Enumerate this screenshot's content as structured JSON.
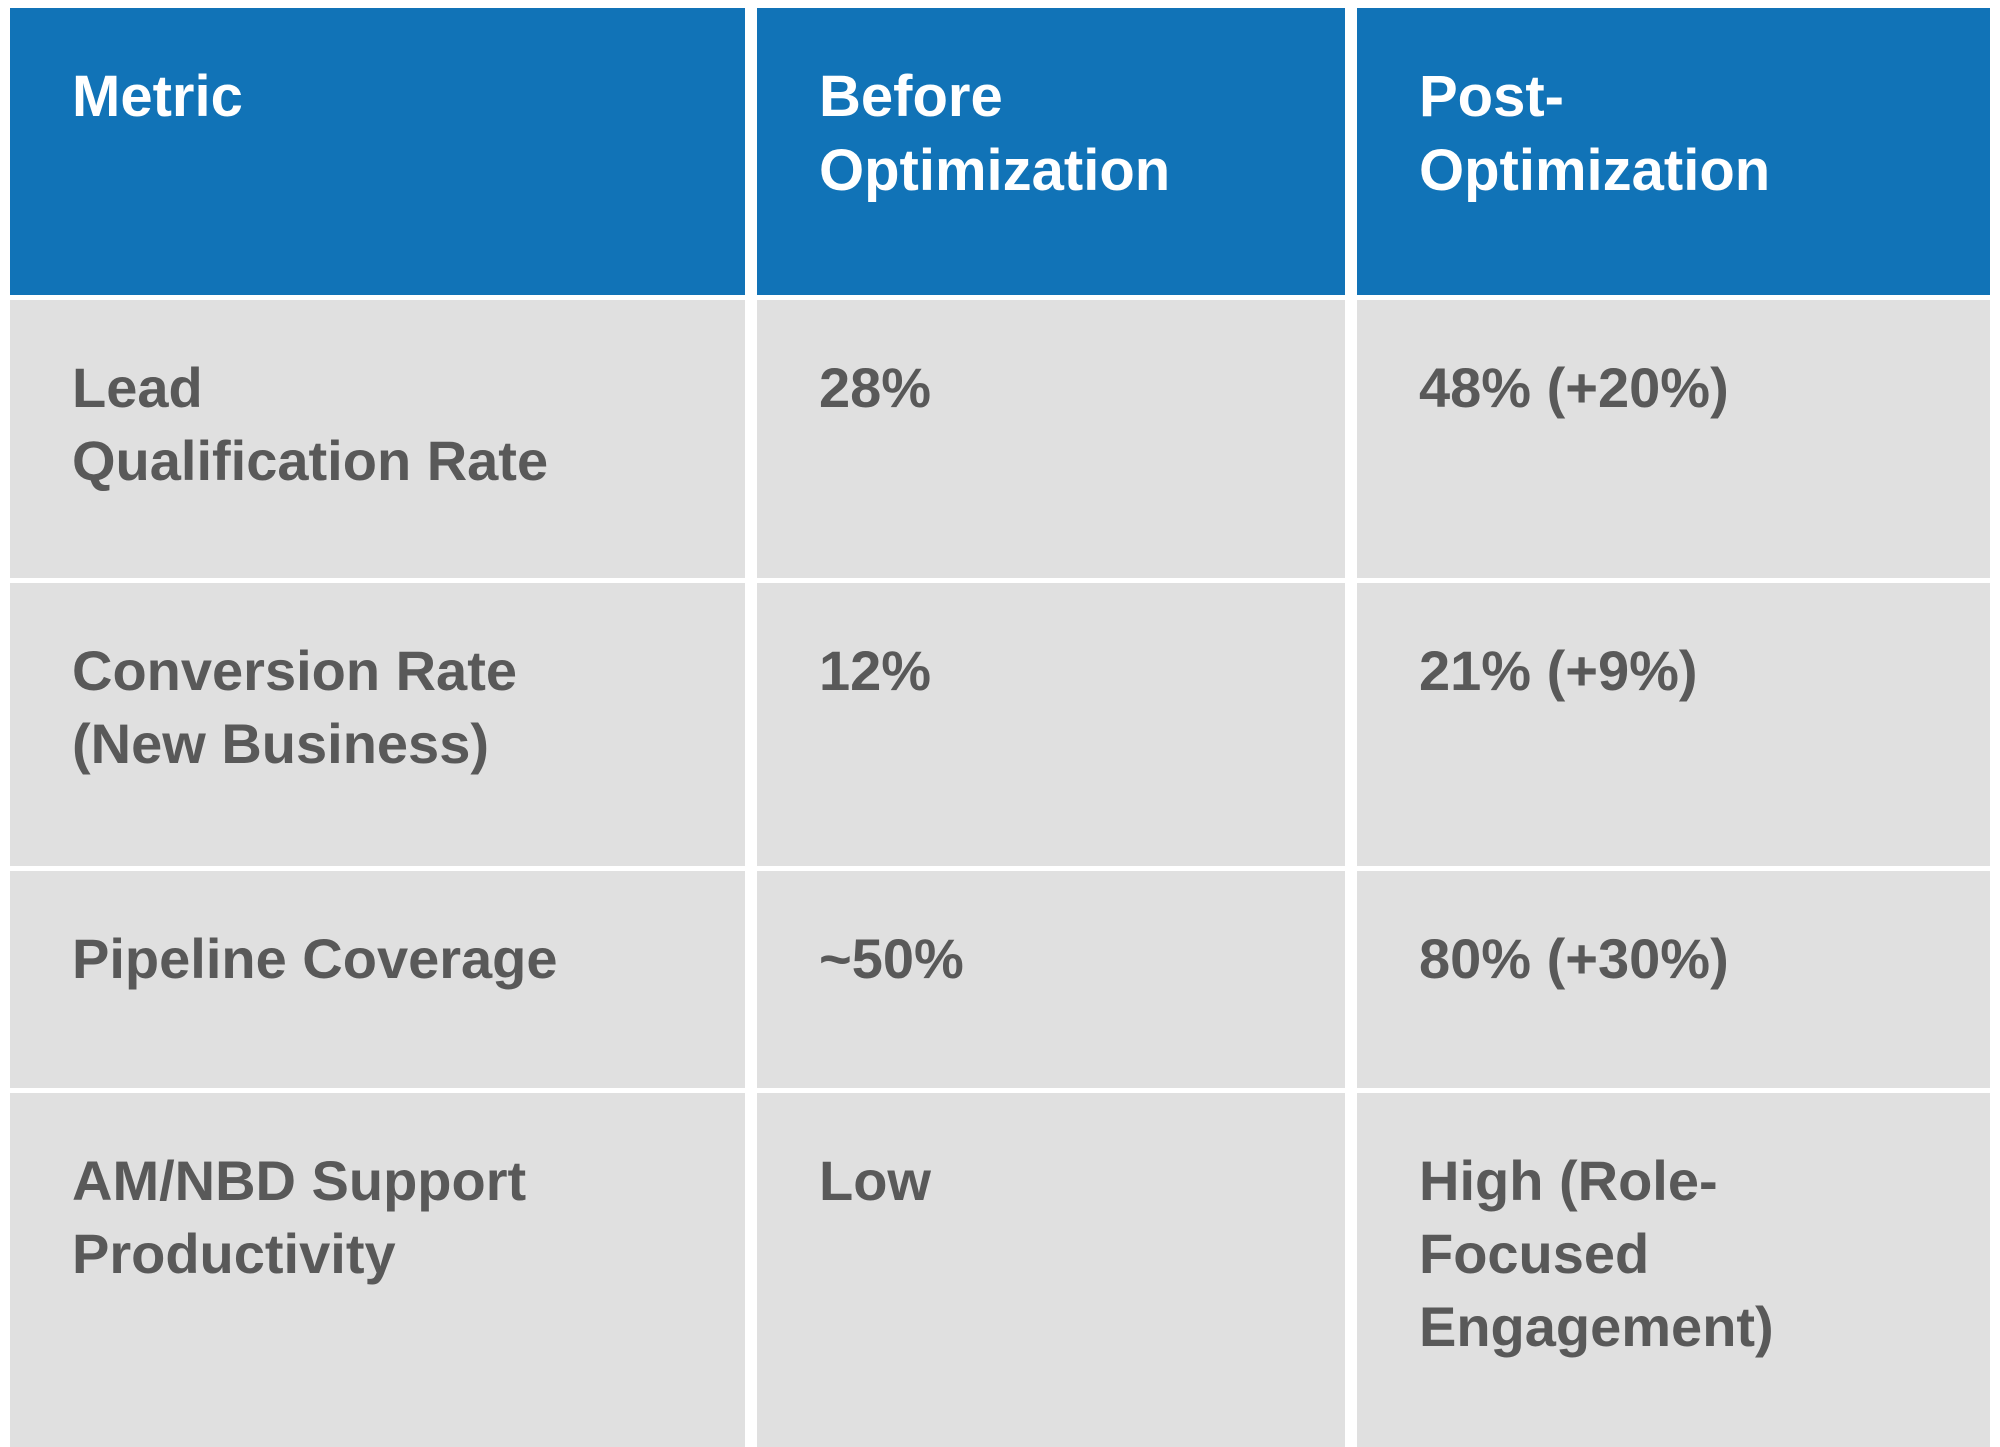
{
  "colors": {
    "header_bg": "#1173b7",
    "header_text": "#ffffff",
    "row_bg": "#e0e0e0",
    "cell_text": "#595959",
    "gap_color": "#ffffff"
  },
  "chart_data": {
    "type": "table",
    "title": "",
    "columns": [
      "Metric",
      "Before\nOptimization",
      "Post-\nOptimization"
    ],
    "rows": [
      {
        "metric": "Lead\nQualification Rate",
        "before": "28%",
        "post": "48% (+20%)"
      },
      {
        "metric": "Conversion Rate\n(New Business)",
        "before": "12%",
        "post": "21% (+9%)"
      },
      {
        "metric": "Pipeline Coverage",
        "before": "~50%",
        "post": "80% (+30%)"
      },
      {
        "metric": "AM/NBD Support\nProductivity",
        "before": "Low",
        "post": "High (Role-\nFocused\nEngagement)"
      }
    ],
    "layout": {
      "legend": "none",
      "grid": "white gutters between solid cells",
      "header_row": true,
      "column_count": 3,
      "row_count": 4
    }
  }
}
